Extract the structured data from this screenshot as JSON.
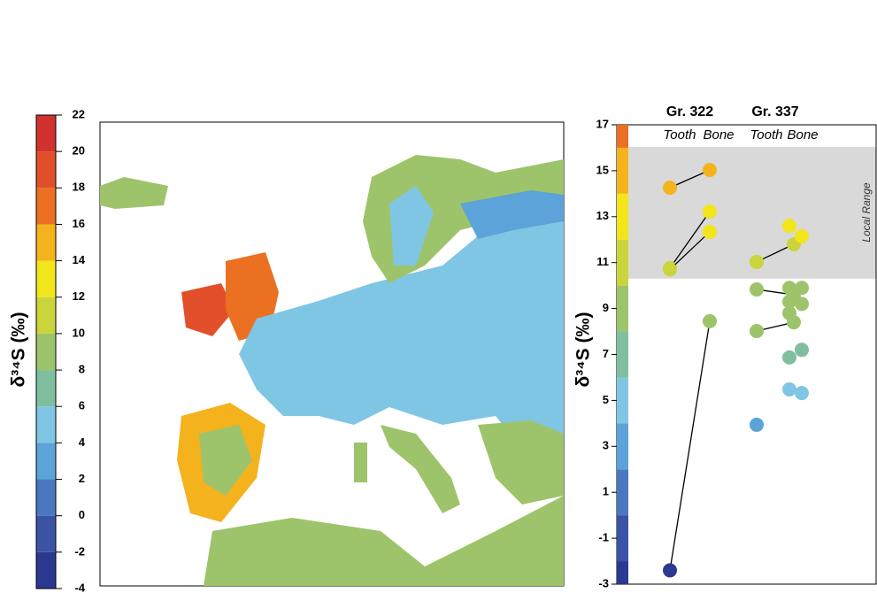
{
  "chart_data": [
    {
      "type": "colorbar",
      "ylabel": "δ³⁴S (‰)",
      "ylim": [
        -4,
        22
      ],
      "yticks": [
        -4,
        -2,
        0,
        2,
        4,
        6,
        8,
        10,
        12,
        14,
        16,
        18,
        20,
        22
      ],
      "colors": [
        "#2b3990",
        "#3a53a4",
        "#4a78c0",
        "#5ba3d9",
        "#7fc6e4",
        "#7fbf9f",
        "#9dc46a",
        "#c9d53a",
        "#f2e51a",
        "#f4b21d",
        "#ec7021",
        "#e1502a",
        "#d2322d"
      ]
    },
    {
      "type": "paired-scatter",
      "ylabel": "δ³⁴S (‰)",
      "ylim": [
        -3,
        17
      ],
      "yticks": [
        -3,
        -1,
        1,
        3,
        5,
        7,
        9,
        11,
        13,
        15,
        17
      ],
      "band": [
        10.3,
        16.04
      ],
      "band_label": "Local Range",
      "band_color": "#d9d9d9",
      "groups": [
        {
          "label": "Gr. 322",
          "categories": [
            "Tooth",
            "Bone"
          ],
          "pairs": [
            {
              "tooth": 14.26,
              "bone": 15.03
            },
            {
              "tooth": 10.76,
              "bone": 13.22
            },
            {
              "tooth": 10.7,
              "bone": 12.34
            },
            {
              "tooth": -2.4,
              "bone": 8.45
            }
          ],
          "tooth": [],
          "bone": []
        },
        {
          "label": "Gr. 337",
          "categories": [
            "Tooth",
            "Bone"
          ],
          "pairs": [
            {
              "tooth": 11.03,
              "bone": 11.8
            },
            {
              "tooth": 9.83,
              "bone": 9.6
            },
            {
              "tooth": 8.02,
              "bone": 8.4
            }
          ],
          "tooth": [
            3.94
          ],
          "bone": [
            12.6,
            12.15,
            9.9,
            9.9,
            9.3,
            9.2,
            8.8,
            7.2,
            6.87,
            5.32,
            5.48
          ]
        }
      ]
    }
  ]
}
